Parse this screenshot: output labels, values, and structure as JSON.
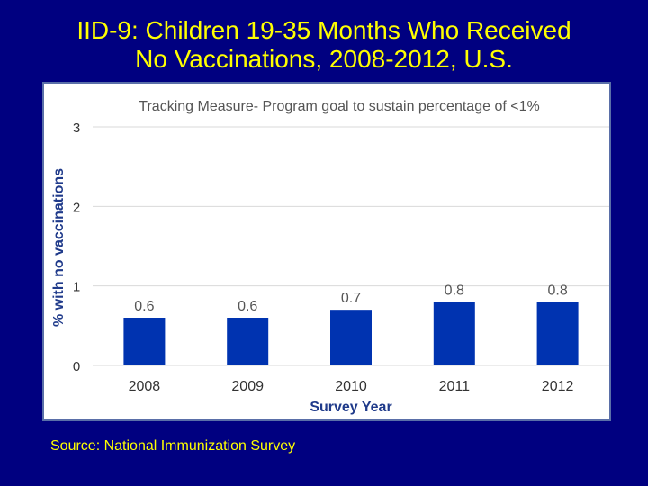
{
  "slide": {
    "title_line1": "IID-9: Children 19-35 Months Who Received",
    "title_line2": "No Vaccinations,  2008-2012, U.S.",
    "source": "Source:  National Immunization Survey"
  },
  "colors": {
    "background": "#000080",
    "title": "#FFFF00",
    "bar": "#0033B0",
    "grid": "#D9D9D9",
    "axis_text": "#333333",
    "label_text": "#555555",
    "axis_title": "#1F3A8A"
  },
  "chart_data": {
    "type": "bar",
    "subtitle": "Tracking Measure- Program goal to sustain percentage of <1%",
    "categories": [
      "2008",
      "2009",
      "2010",
      "2011",
      "2012"
    ],
    "values": [
      0.6,
      0.6,
      0.7,
      0.8,
      0.8
    ],
    "value_labels": [
      "0.6",
      "0.6",
      "0.7",
      "0.8",
      "0.8"
    ],
    "xlabel": "Survey Year",
    "ylabel": "% with no vaccinations",
    "ylim": [
      0,
      3
    ],
    "yticks": [
      "0",
      "1",
      "2",
      "3"
    ],
    "grid": true
  }
}
